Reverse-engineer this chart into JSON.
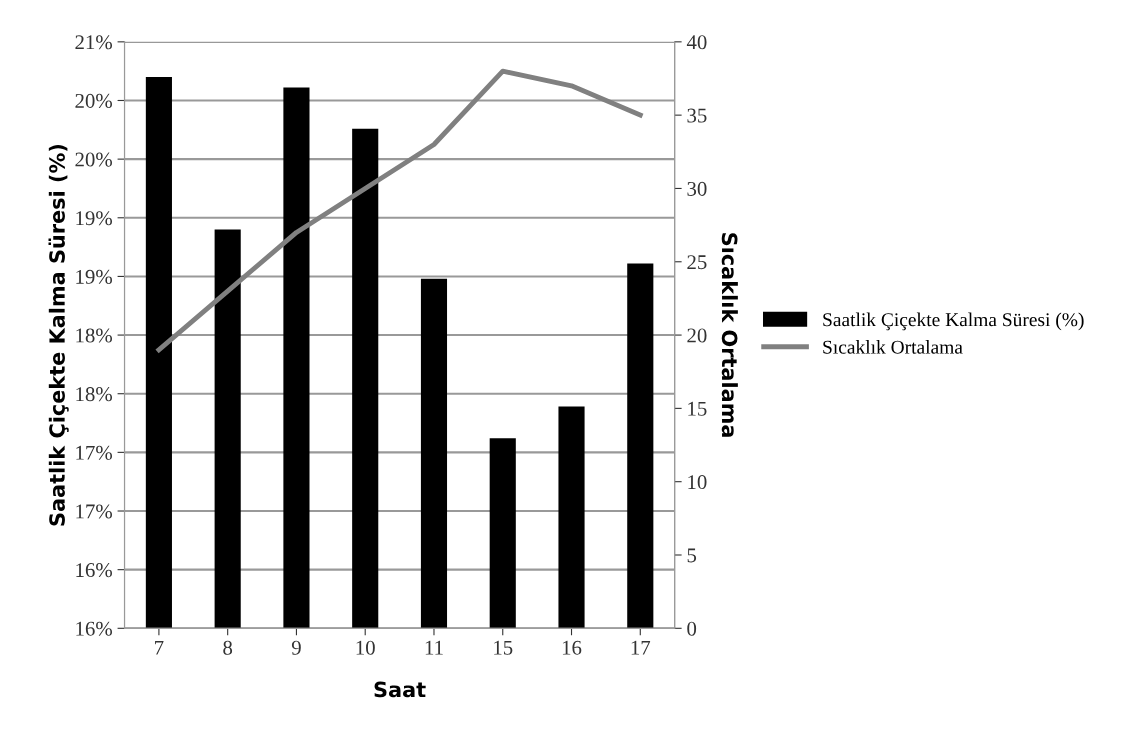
{
  "chart_data": {
    "type": "bar",
    "xlabel": "Saat",
    "ylabel": "Saatlik Çiçekte Kalma Süresi (%)",
    "y2label": "Sıcaklık Ortalama",
    "categories": [
      "7",
      "8",
      "9",
      "10",
      "11",
      "15",
      "16",
      "17"
    ],
    "series": [
      {
        "name": "Saatlik Çiçekte Kalma Süresi (%)",
        "color": "#000000",
        "values": [
          20.7,
          19.4,
          20.61,
          20.26,
          18.98,
          17.62,
          17.89,
          19.11
        ]
      },
      {
        "name": "Sıcaklık Ortalama",
        "type": "line",
        "axis": "y2",
        "color": "#808080",
        "values": [
          19,
          23,
          27,
          30,
          33,
          38,
          37,
          35
        ]
      }
    ],
    "ylim": [
      16,
      21
    ],
    "yticks": [
      {
        "value": 16,
        "label": "16%"
      },
      {
        "value": 16.5,
        "label": "16%"
      },
      {
        "value": 17,
        "label": "17%"
      },
      {
        "value": 17.5,
        "label": "17%"
      },
      {
        "value": 18,
        "label": "18%"
      },
      {
        "value": 18.5,
        "label": "18%"
      },
      {
        "value": 19,
        "label": "19%"
      },
      {
        "value": 19.5,
        "label": "19%"
      },
      {
        "value": 20,
        "label": "20%"
      },
      {
        "value": 20.5,
        "label": "20%"
      },
      {
        "value": 21,
        "label": "21%"
      }
    ],
    "y2lim": [
      0,
      40
    ],
    "y2ticks": [
      0,
      5,
      10,
      15,
      20,
      25,
      30,
      35,
      40
    ],
    "grid": "y",
    "legend": "right",
    "marker": "none",
    "line_style": "solid"
  }
}
